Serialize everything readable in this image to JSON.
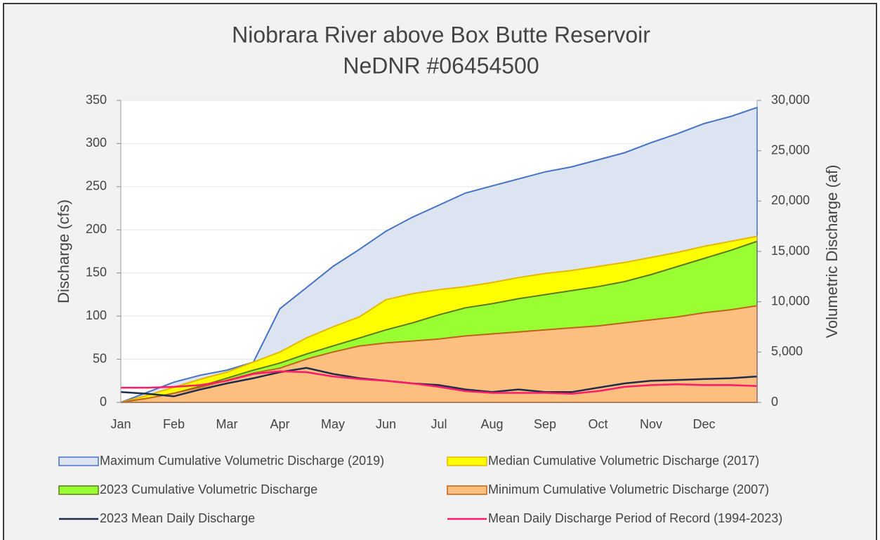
{
  "chart_data": {
    "type": "area",
    "title": "Niobrara River above Box Butte Reservoir",
    "subtitle": "NeDNR #06454500",
    "y_label": "Discharge (cfs)",
    "y2_label": "Volumetric Discharge (af)",
    "categories": [
      "Jan",
      null,
      "Feb",
      null,
      "Mar",
      null,
      "Apr",
      null,
      "May",
      null,
      "Jun",
      null,
      "Jul",
      null,
      "Aug",
      null,
      "Sep",
      null,
      "Oct",
      null,
      "Nov",
      null,
      "Dec",
      null,
      null
    ],
    "ylim": [
      0,
      350
    ],
    "yticks": [
      0,
      50,
      100,
      150,
      200,
      250,
      300,
      350
    ],
    "y2lim": [
      0,
      30000
    ],
    "y2ticks": [
      0,
      {
        "value": 5000,
        "label": "5,000"
      },
      {
        "value": 10000,
        "label": "10,000"
      },
      {
        "value": 15000,
        "label": "15,000"
      },
      {
        "value": 20000,
        "label": "20,000"
      },
      {
        "value": 25000,
        "label": "25,000"
      },
      {
        "value": 30000,
        "label": "30,000"
      }
    ],
    "series": [
      {
        "name": "Maximum Cumulative Volumetric Discharge (2019)",
        "axis": "y2",
        "fill_color": "#dce3f1",
        "color": "#4472c4",
        "values": [
          0,
          1000,
          2000,
          2700,
          3200,
          4000,
          9300,
          11400,
          13500,
          15200,
          17000,
          18400,
          19600,
          20800,
          21500,
          22200,
          22900,
          23400,
          24100,
          24800,
          25800,
          26700,
          27700,
          28400,
          29300
        ]
      },
      {
        "name": "Median Cumulative Volumetric Discharge (2017)",
        "axis": "y2",
        "fill_color": "#ffff00",
        "color": "#e6b800",
        "values": [
          0,
          700,
          1500,
          2300,
          3000,
          4000,
          5000,
          6400,
          7500,
          8500,
          10200,
          10800,
          11200,
          11500,
          11900,
          12400,
          12800,
          13100,
          13500,
          13900,
          14400,
          14900,
          15500,
          16000,
          16500
        ]
      },
      {
        "name": "2023 Cumulative Volumetric Discharge",
        "axis": "y2",
        "fill_color": "#99ff33",
        "color": "#5a7a1a",
        "values": [
          0,
          400,
          900,
          1600,
          2400,
          3200,
          3900,
          4800,
          5600,
          6400,
          7200,
          7900,
          8700,
          9400,
          9800,
          10300,
          10700,
          11100,
          11500,
          12000,
          12700,
          13500,
          14300,
          15100,
          16000
        ]
      },
      {
        "name": "Minimum Cumulative Volumetric Discharge (2007)",
        "axis": "y2",
        "fill_color": "#fdbf7f",
        "color": "#c0621a",
        "values": [
          0,
          400,
          900,
          1500,
          2200,
          2900,
          3400,
          4300,
          5000,
          5600,
          5900,
          6100,
          6300,
          6600,
          6800,
          7000,
          7200,
          7400,
          7600,
          7900,
          8200,
          8500,
          8900,
          9200,
          9600
        ]
      },
      {
        "name": "2023 Mean Daily Discharge",
        "color": "#1f2d4d",
        "values": [
          12,
          10,
          7,
          15,
          22,
          28,
          35,
          40,
          33,
          28,
          25,
          22,
          20,
          15,
          12,
          15,
          12,
          12,
          17,
          22,
          25,
          26,
          27,
          28,
          30
        ]
      },
      {
        "name": "Mean Daily Discharge Period of Record (1994-2023)",
        "color": "#ff1a6c",
        "values": [
          17,
          17,
          18,
          20,
          25,
          33,
          36,
          35,
          30,
          27,
          25,
          22,
          18,
          13,
          11,
          11,
          11,
          10,
          13,
          18,
          20,
          21,
          20,
          20,
          19
        ]
      }
    ]
  }
}
